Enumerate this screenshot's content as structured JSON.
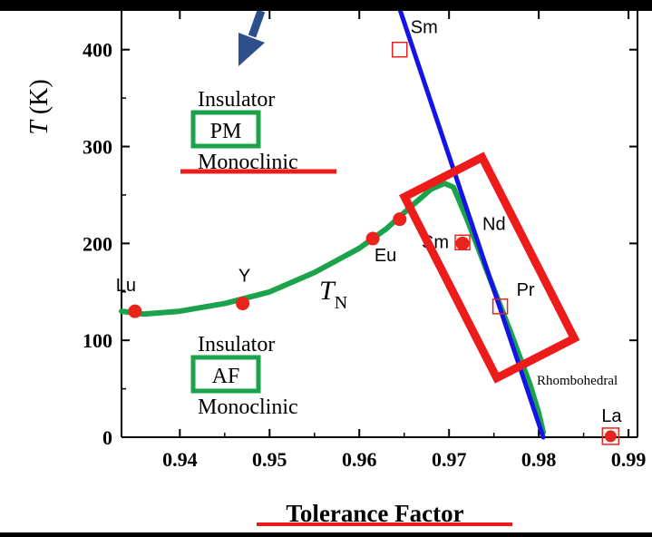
{
  "chart_data": {
    "type": "scatter",
    "xlabel": "Tolerance Factor",
    "ylabel_italic": "T",
    "ylabel_unit": "(K)",
    "xlim": [
      0.9335,
      0.991
    ],
    "ylim": [
      0,
      440
    ],
    "xticks": [
      0.94,
      0.95,
      0.96,
      0.97,
      0.98,
      0.99
    ],
    "xtick_labels": [
      "0.94",
      "0.95",
      "0.96",
      "0.97",
      "0.98",
      "0.99"
    ],
    "yticks": [
      0,
      100,
      200,
      300,
      400
    ],
    "ytick_labels": [
      "0",
      "100",
      "200",
      "300",
      "400"
    ],
    "grid": false,
    "series": [
      {
        "marker": "filled-circle",
        "color": "#e8241c",
        "points": [
          {
            "label": "Lu",
            "x": 0.935,
            "y": 130
          },
          {
            "label": "Y",
            "x": 0.947,
            "y": 138
          },
          {
            "label": "Eu",
            "x": 0.9615,
            "y": 205
          },
          {
            "label": "",
            "x": 0.9645,
            "y": 225
          },
          {
            "label": "Sm",
            "x": 0.9715,
            "y": 200
          }
        ]
      },
      {
        "marker": "open-square",
        "color": "#e8241c",
        "points": [
          {
            "label": "Sm",
            "x": 0.9645,
            "y": 400
          },
          {
            "label": "Nd",
            "x": 0.9715,
            "y": 201
          },
          {
            "label": "Pr",
            "x": 0.9757,
            "y": 135
          },
          {
            "label": "La",
            "x": 0.988,
            "y": 1
          }
        ]
      }
    ],
    "curves": [
      {
        "name": "T_N",
        "label_main": "T",
        "label_sub": "N",
        "color": "#1aa34a",
        "x": [
          0.9335,
          0.936,
          0.94,
          0.945,
          0.95,
          0.955,
          0.96,
          0.963,
          0.966,
          0.968,
          0.9695,
          0.9705,
          0.972,
          0.9745,
          0.977,
          0.979,
          0.98,
          0.9805
        ],
        "y": [
          130,
          127,
          130,
          138,
          150,
          170,
          195,
          215,
          240,
          256,
          262,
          258,
          225,
          165,
          105,
          55,
          25,
          5
        ]
      },
      {
        "name": "boundary",
        "color": "#1414e6",
        "x": [
          0.9645,
          0.9805
        ],
        "y": [
          442,
          0
        ]
      }
    ],
    "region_labels": {
      "upper": {
        "line1": "Insulator",
        "box": "PM",
        "line3": "Monoclinic"
      },
      "lower": {
        "line1": "Insulator",
        "box": "AF",
        "line3": "Monoclinic"
      },
      "right": "Rhombohedral"
    },
    "colors": {
      "arrow": "#2f4f8c",
      "highlight_box": "#ee1b1b",
      "phase_box": "#1aa34a",
      "underline": "#ee1b1b"
    }
  }
}
